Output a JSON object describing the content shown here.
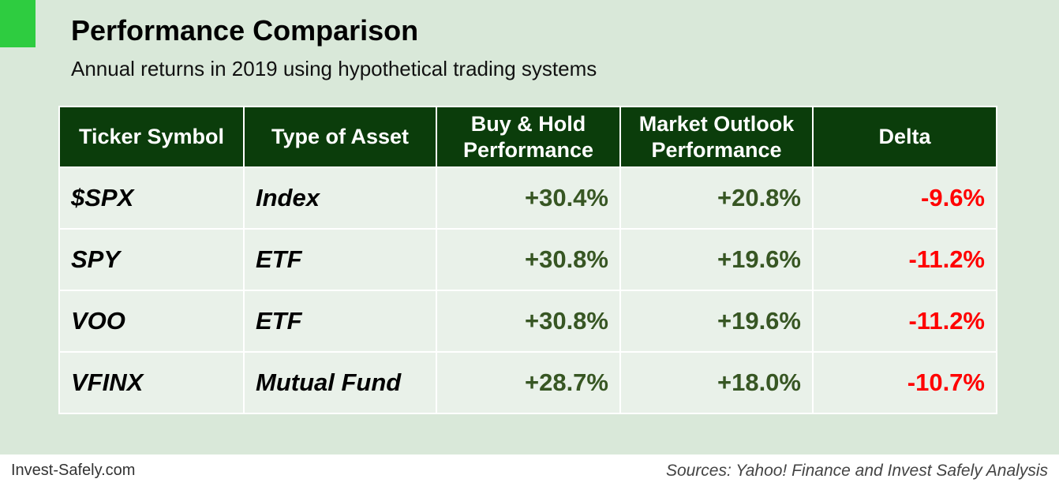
{
  "title": "Performance Comparison",
  "subtitle": "Annual returns in 2019 using hypothetical trading systems",
  "colors": {
    "header_bg": "#0b3d0b",
    "panel_bg": "#d9e8d9",
    "accent": "#2ecc40",
    "positive": "#375623",
    "negative": "#ff0000"
  },
  "chart_data": {
    "type": "table",
    "columns": [
      "Ticker Symbol",
      "Type of Asset",
      "Buy & Hold\nPerformance",
      "Market Outlook\nPerformance",
      "Delta"
    ],
    "rows": [
      [
        "$SPX",
        "Index",
        "+30.4%",
        "+20.8%",
        "-9.6%"
      ],
      [
        "SPY",
        "ETF",
        "+30.8%",
        "+19.6%",
        "-11.2%"
      ],
      [
        "VOO",
        "ETF",
        "+30.8%",
        "+19.6%",
        "-11.2%"
      ],
      [
        "VFINX",
        "Mutual Fund",
        "+28.7%",
        "+18.0%",
        "-10.7%"
      ]
    ]
  },
  "footer": {
    "left": "Invest-Safely.com",
    "right": "Sources: Yahoo! Finance and Invest Safely Analysis"
  }
}
